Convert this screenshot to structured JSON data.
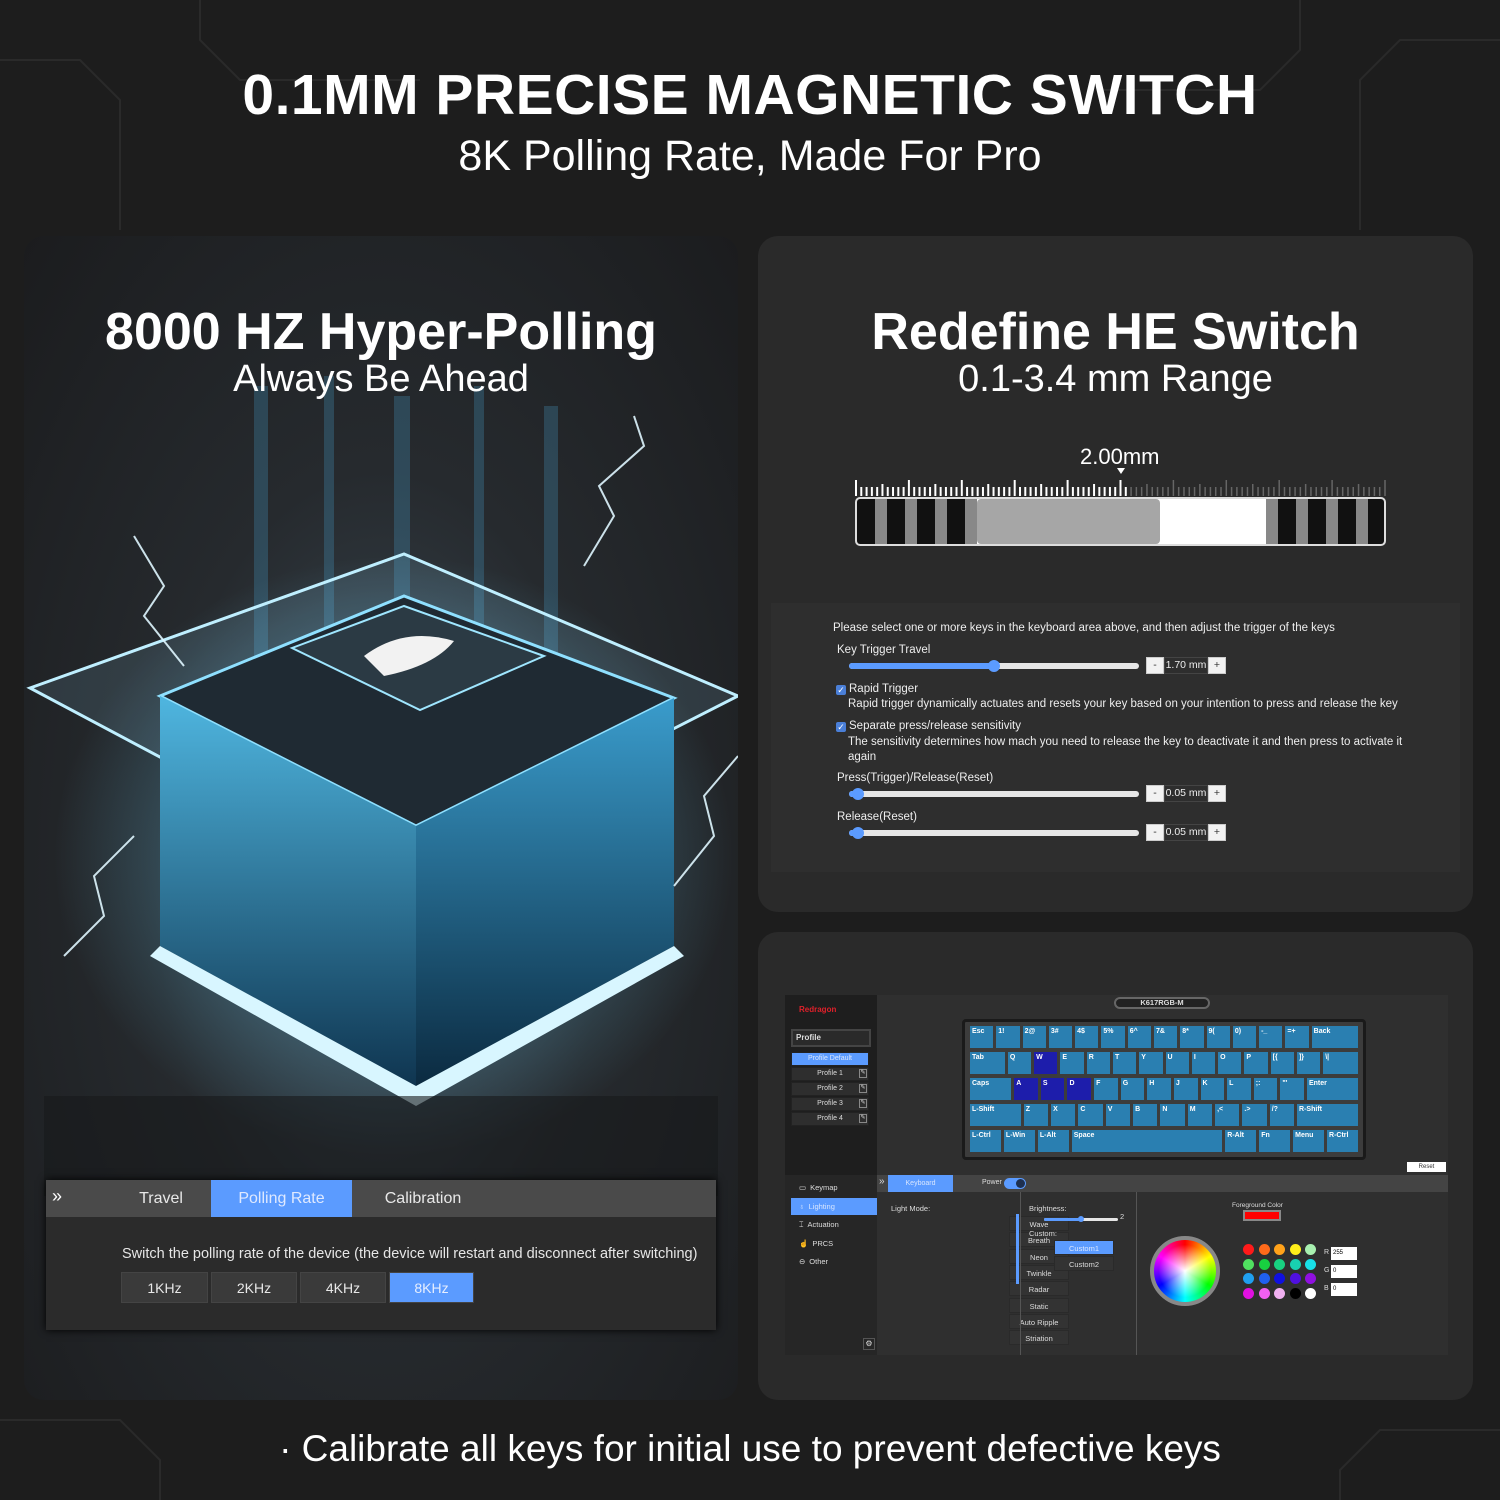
{
  "header": {
    "title": "0.1MM PRECISE MAGNETIC SWITCH",
    "subtitle": "8K Polling Rate, Made For Pro"
  },
  "left_card": {
    "title": "8000 HZ Hyper-Polling",
    "subtitle": "Always Be Ahead",
    "polling_panel": {
      "tabs": [
        {
          "label": "Travel",
          "active": false
        },
        {
          "label": "Polling Rate",
          "active": true
        },
        {
          "label": "Calibration",
          "active": false
        }
      ],
      "description": "Switch the polling rate of the device (the device will restart and disconnect after switching)",
      "options": [
        {
          "label": "1KHz",
          "active": false
        },
        {
          "label": "2KHz",
          "active": false
        },
        {
          "label": "4KHz",
          "active": false
        },
        {
          "label": "8KHz",
          "active": true
        }
      ]
    }
  },
  "right_top_card": {
    "title": "Redefine HE Switch",
    "subtitle": "0.1-3.4 mm Range",
    "gauge": {
      "label": "2.00mm",
      "value_mm": 2.0,
      "range_mm": [
        0.1,
        3.4
      ]
    },
    "settings": {
      "instruction": "Please select one or more keys in the keyboard area above, and then adjust the trigger of the keys",
      "key_trigger_travel": {
        "label": "Key Trigger Travel",
        "value": "1.70",
        "unit": "mm",
        "fraction": 0.5
      },
      "rapid_trigger": {
        "label": "Rapid Trigger",
        "checked": true,
        "description": "Rapid trigger dynamically actuates and resets your key based on your intention to press and release the key"
      },
      "separate_sensitivity": {
        "label": "Separate press/release sensitivity",
        "checked": true,
        "description": "The sensitivity determines how mach you need to release the key to deactivate it and then press to activate it again"
      },
      "press_release": {
        "label": "Press(Trigger)/Release(Reset)",
        "value": "0.05",
        "unit": "mm",
        "fraction": 0.03
      },
      "release": {
        "label": "Release(Reset)",
        "value": "0.05",
        "unit": "mm",
        "fraction": 0.03
      },
      "minus": "-",
      "plus": "+"
    }
  },
  "software": {
    "brand": "Redragon",
    "device": "K617RGB-M",
    "profile_header": "Profile",
    "profiles": [
      "Profile Default",
      "Profile 1",
      "Profile 2",
      "Profile 3",
      "Profile 4"
    ],
    "active_profile": "Profile Default",
    "keyboard_rows": [
      [
        "Esc",
        "1!",
        "2@",
        "3#",
        "4$",
        "5%",
        "6^",
        "7&",
        "8*",
        "9(",
        "0)",
        "-_",
        "=+",
        "Back"
      ],
      [
        "Tab",
        "Q",
        "W",
        "E",
        "R",
        "T",
        "Y",
        "U",
        "I",
        "O",
        "P",
        "[{",
        "]}",
        "\\|"
      ],
      [
        "Caps",
        "A",
        "S",
        "D",
        "F",
        "G",
        "H",
        "J",
        "K",
        "L",
        ";:",
        "\"'",
        "Enter"
      ],
      [
        "L-Shift",
        "Z",
        "X",
        "C",
        "V",
        "B",
        "N",
        "M",
        ",<",
        ".>",
        "/?",
        "R-Shift"
      ],
      [
        "L-Ctrl",
        "L-Win",
        "L-Alt",
        "Space",
        "R-Alt",
        "Fn",
        "Menu",
        "R-Ctrl"
      ]
    ],
    "selected_keys": [
      "W",
      "A",
      "S",
      "D"
    ],
    "reset": "Reset",
    "nav": [
      {
        "label": "Keymap",
        "icon": "keyboard-icon"
      },
      {
        "label": "Lighting",
        "icon": "bulb-icon",
        "active": true
      },
      {
        "label": "Actuation",
        "icon": "actuation-icon"
      },
      {
        "label": "PRCS",
        "icon": "hand-icon"
      },
      {
        "label": "Other",
        "icon": "minus-circle-icon"
      }
    ],
    "tab": "Keyboard",
    "power": {
      "label": "Power",
      "on": true
    },
    "light_mode_label": "Light Mode:",
    "light_modes": [
      "Wave",
      "Breath",
      "Neon",
      "Twinkle",
      "Radar",
      "Static",
      "Auto Ripple",
      "Striation"
    ],
    "brightness": {
      "label": "Brightness:",
      "value": "2",
      "fraction": 0.5
    },
    "custom_label": "Custom:",
    "customs": [
      {
        "label": "Custom1",
        "active": true
      },
      {
        "label": "Custom2",
        "active": false
      }
    ],
    "foreground_label": "Foreground Color",
    "foreground_color": "#ff0000",
    "palette": [
      "#ff1a1a",
      "#ff6a1a",
      "#ffa21a",
      "#ffee1a",
      "#a8f0b0",
      "#50e060",
      "#18d040",
      "#18d080",
      "#18d0b0",
      "#18e0e8",
      "#20a0f0",
      "#2060f0",
      "#1010e0",
      "#5010e0",
      "#9010e0",
      "#e010e0",
      "#f060f0",
      "#f0b0f0",
      "#000000",
      "#ffffff"
    ],
    "rgb": [
      {
        "label": "R",
        "value": "255"
      },
      {
        "label": "G",
        "value": "0"
      },
      {
        "label": "B",
        "value": "0"
      }
    ]
  },
  "footer": "· Calibrate all keys for initial use to prevent defective keys",
  "colors": {
    "accent": "#5b9bff",
    "key": "#2a7fb1",
    "key_selected": "#1d1dab",
    "background": "#1d1d1d"
  }
}
